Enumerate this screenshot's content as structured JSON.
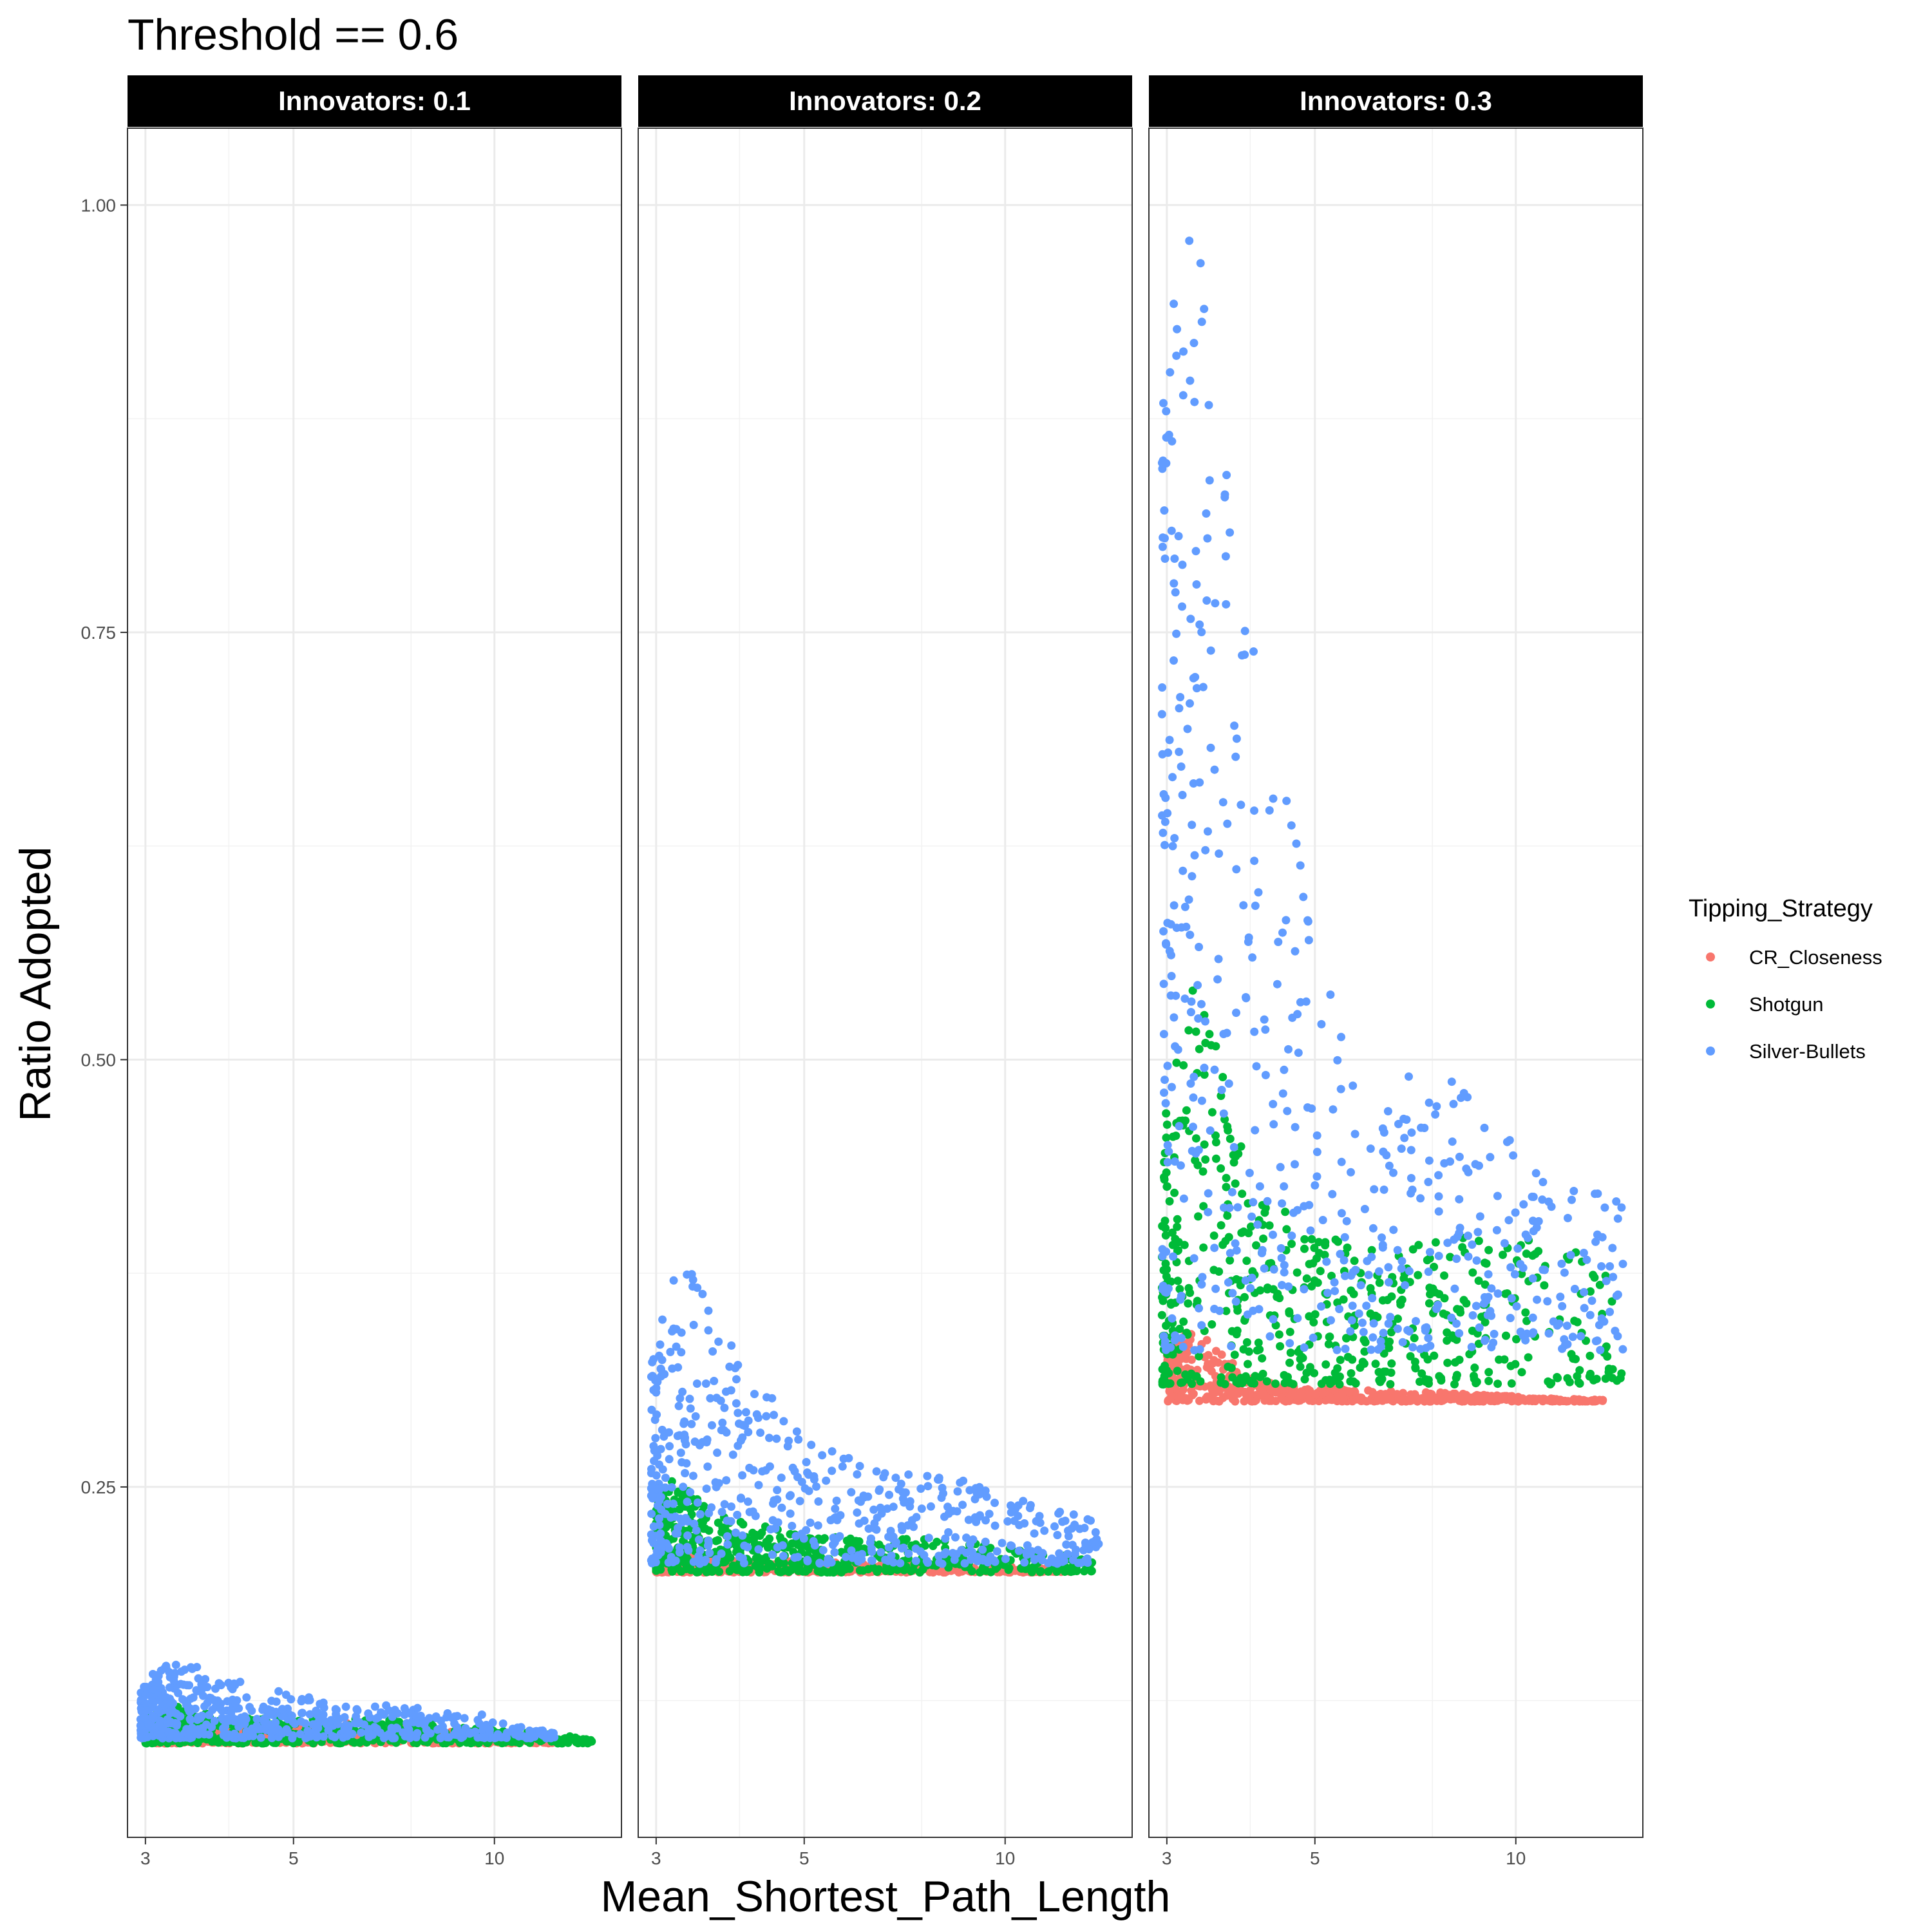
{
  "chart_data": {
    "type": "scatter",
    "title": "Threshold == 0.6",
    "xlabel": "Mean_Shortest_Path_Length",
    "ylabel": "Ratio Adopted",
    "x_scale": "log10",
    "xlim": [
      2.82,
      15.5
    ],
    "ylim": [
      0.045,
      1.045
    ],
    "x_ticks": [
      3,
      5,
      10
    ],
    "y_ticks": [
      0.25,
      0.5,
      0.75,
      1.0
    ],
    "y_tick_labels": [
      "0.25",
      "0.50",
      "0.75",
      "1.00"
    ],
    "grid": true,
    "legend": {
      "title": "Tipping_Strategy",
      "position": "right",
      "entries": [
        {
          "name": "CR_Closeness",
          "color": "#F8766D"
        },
        {
          "name": "Shotgun",
          "color": "#00BA38"
        },
        {
          "name": "Silver-Bullets",
          "color": "#619CFF"
        }
      ]
    },
    "facets": [
      {
        "label": "Innovators: 0.1",
        "series": [
          {
            "name": "CR_Closeness",
            "envelope_upper": [
              [
                3.0,
                0.118
              ],
              [
                3.2,
                0.115
              ],
              [
                3.5,
                0.114
              ],
              [
                4.0,
                0.112
              ],
              [
                5.0,
                0.111
              ],
              [
                6.0,
                0.112
              ],
              [
                8.0,
                0.108
              ],
              [
                10.0,
                0.106
              ],
              [
                11.5,
                0.104
              ],
              [
                12.3,
                0.103
              ]
            ],
            "envelope_lower": 0.1
          },
          {
            "name": "Shotgun",
            "envelope_upper": [
              [
                3.0,
                0.12
              ],
              [
                3.3,
                0.122
              ],
              [
                4.0,
                0.115
              ],
              [
                5.0,
                0.114
              ],
              [
                6.0,
                0.115
              ],
              [
                8.0,
                0.112
              ],
              [
                10.0,
                0.108
              ],
              [
                12.5,
                0.105
              ],
              [
                14.0,
                0.102
              ]
            ],
            "envelope_lower": 0.1
          },
          {
            "name": "Silver-Bullets",
            "envelope_upper": [
              [
                2.95,
                0.13
              ],
              [
                3.15,
                0.148
              ],
              [
                3.35,
                0.15
              ],
              [
                3.7,
                0.142
              ],
              [
                4.0,
                0.138
              ],
              [
                4.5,
                0.132
              ],
              [
                5.0,
                0.13
              ],
              [
                6.0,
                0.124
              ],
              [
                7.0,
                0.122
              ],
              [
                8.0,
                0.12
              ],
              [
                9.5,
                0.118
              ],
              [
                11.0,
                0.11
              ],
              [
                12.3,
                0.106
              ]
            ],
            "envelope_lower": 0.103
          }
        ]
      },
      {
        "label": "Innovators: 0.2",
        "series": [
          {
            "name": "CR_Closeness",
            "envelope_upper": [
              [
                3.0,
                0.21
              ],
              [
                4.0,
                0.208
              ],
              [
                5.0,
                0.206
              ],
              [
                7.0,
                0.205
              ],
              [
                9.0,
                0.204
              ],
              [
                11.0,
                0.203
              ],
              [
                12.5,
                0.202
              ]
            ],
            "envelope_lower": 0.2
          },
          {
            "name": "Shotgun",
            "envelope_upper": [
              [
                3.0,
                0.245
              ],
              [
                3.2,
                0.255
              ],
              [
                3.6,
                0.238
              ],
              [
                4.0,
                0.23
              ],
              [
                5.0,
                0.222
              ],
              [
                6.0,
                0.22
              ],
              [
                8.0,
                0.22
              ],
              [
                10.0,
                0.215
              ],
              [
                12.5,
                0.21
              ],
              [
                13.5,
                0.206
              ]
            ],
            "envelope_lower": 0.2
          },
          {
            "name": "Silver-Bullets",
            "envelope_upper": [
              [
                2.95,
                0.32
              ],
              [
                3.1,
                0.37
              ],
              [
                3.25,
                0.395
              ],
              [
                3.45,
                0.375
              ],
              [
                3.8,
                0.34
              ],
              [
                4.3,
                0.31
              ],
              [
                4.8,
                0.29
              ],
              [
                5.2,
                0.275
              ],
              [
                6.0,
                0.265
              ],
              [
                7.0,
                0.262
              ],
              [
                8.0,
                0.26
              ],
              [
                9.5,
                0.25
              ],
              [
                11.0,
                0.24
              ],
              [
                12.5,
                0.235
              ],
              [
                14.0,
                0.228
              ]
            ],
            "envelope_lower": 0.205
          }
        ]
      },
      {
        "label": "Innovators: 0.3",
        "series": [
          {
            "name": "CR_Closeness",
            "envelope_upper": [
              [
                3.0,
                0.33
              ],
              [
                3.3,
                0.345
              ],
              [
                3.6,
                0.33
              ],
              [
                4.0,
                0.315
              ],
              [
                5.0,
                0.308
              ],
              [
                7.0,
                0.306
              ],
              [
                9.0,
                0.304
              ],
              [
                11.0,
                0.302
              ],
              [
                13.5,
                0.301
              ]
            ],
            "envelope_lower": 0.3
          },
          {
            "name": "Shotgun",
            "envelope_upper": [
              [
                2.95,
                0.46
              ],
              [
                3.1,
                0.5
              ],
              [
                3.3,
                0.56
              ],
              [
                3.5,
                0.52
              ],
              [
                3.8,
                0.46
              ],
              [
                4.2,
                0.42
              ],
              [
                4.6,
                0.41
              ],
              [
                5.0,
                0.4
              ],
              [
                6.0,
                0.39
              ],
              [
                8.0,
                0.395
              ],
              [
                10.0,
                0.4
              ],
              [
                12.0,
                0.39
              ],
              [
                14.5,
                0.37
              ]
            ],
            "envelope_lower": 0.31
          },
          {
            "name": "Silver-Bullets",
            "envelope_upper": [
              [
                2.95,
                0.88
              ],
              [
                3.05,
                0.95
              ],
              [
                3.2,
                1.0
              ],
              [
                3.4,
                1.0
              ],
              [
                3.6,
                0.87
              ],
              [
                3.85,
                0.8
              ],
              [
                4.15,
                0.74
              ],
              [
                4.4,
                0.7
              ],
              [
                4.7,
                0.63
              ],
              [
                5.0,
                0.57
              ],
              [
                5.5,
                0.52
              ],
              [
                6.0,
                0.48
              ],
              [
                6.5,
                0.47
              ],
              [
                7.0,
                0.5
              ],
              [
                8.0,
                0.49
              ],
              [
                9.0,
                0.47
              ],
              [
                10.0,
                0.45
              ],
              [
                11.0,
                0.44
              ],
              [
                12.5,
                0.42
              ],
              [
                14.5,
                0.425
              ]
            ],
            "envelope_lower": 0.33
          }
        ]
      }
    ]
  }
}
